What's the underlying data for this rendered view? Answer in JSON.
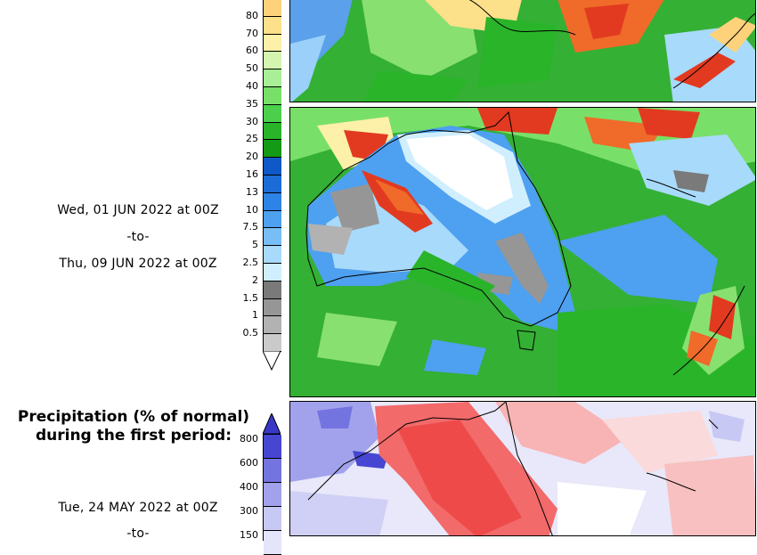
{
  "period2": {
    "line1": "Wed, 01 JUN 2022 at 00Z",
    "line2": "-to-",
    "line3": "Thu, 09 JUN 2022 at 00Z"
  },
  "period1": {
    "line1": "Tue, 24 MAY 2022 at 00Z",
    "line2": "-to-"
  },
  "pct_section": {
    "title_line1": "Precipitation (% of normal)",
    "title_line2": "during the first period:"
  },
  "precip_legend": {
    "ticks": [
      "80",
      "70",
      "60",
      "50",
      "40",
      "35",
      "30",
      "25",
      "20",
      "16",
      "13",
      "10",
      "7.5",
      "5",
      "2.5",
      "2",
      "1.5",
      "1",
      "0.5"
    ],
    "colors": [
      "#fdd27a",
      "#fde08a",
      "#fdf0a8",
      "#d4f5b0",
      "#a8ef98",
      "#78e068",
      "#4cd04c",
      "#2ab42a",
      "#149a14",
      "#0e58c8",
      "#1c6cd8",
      "#2e84e6",
      "#4ea0f0",
      "#78bef6",
      "#a8dafb",
      "#cfeefe",
      "#7a7a7a",
      "#969696",
      "#b2b2b2",
      "#cacaca"
    ]
  },
  "pct_legend": {
    "ticks": [
      "800",
      "600",
      "400",
      "300",
      "150"
    ],
    "colors": [
      "#4646d2",
      "#7474e0",
      "#a2a2ec",
      "#c8c8f4",
      "#e4e4fa"
    ]
  }
}
